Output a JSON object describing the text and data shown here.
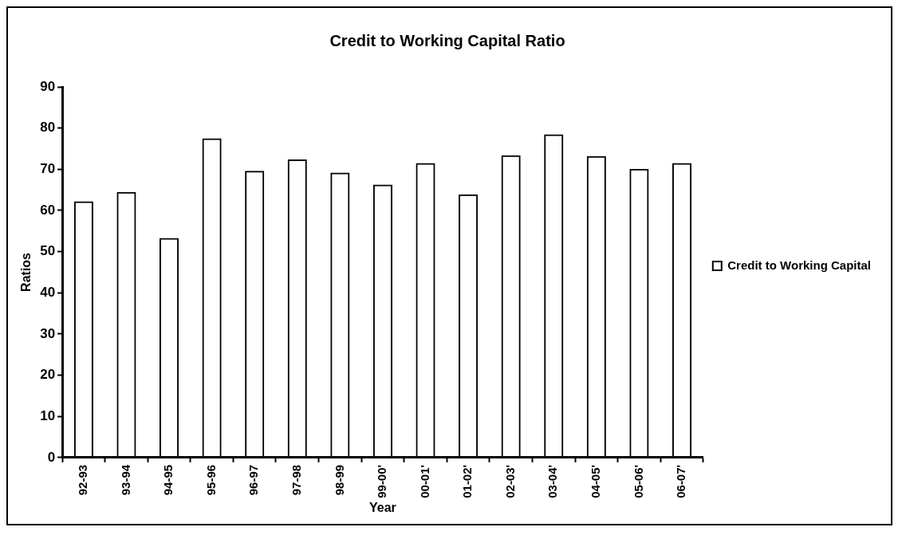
{
  "chart_data": {
    "type": "bar",
    "title": "Credit to Working Capital Ratio",
    "xlabel": "Year",
    "ylabel": "Ratios",
    "categories": [
      "92-93",
      "93-94",
      "94-95",
      "95-96",
      "96-97",
      "97-98",
      "98-99",
      "99-00'",
      "00-01'",
      "01-02'",
      "02-03'",
      "03-04'",
      "04-05'",
      "05-06'",
      "06-07'"
    ],
    "series": [
      {
        "name": "Credit to Working Capital",
        "color": "#000000",
        "values": [
          62.2,
          64.5,
          53.3,
          77.5,
          69.6,
          72.4,
          69.2,
          66.3,
          71.5,
          63.9,
          73.4,
          78.5,
          73.2,
          70.1,
          71.5
        ]
      }
    ],
    "ylim": [
      0,
      90
    ],
    "yticks": [
      0,
      10,
      20,
      30,
      40,
      50,
      60,
      70,
      80,
      90
    ],
    "grid": false,
    "legend": "right"
  }
}
